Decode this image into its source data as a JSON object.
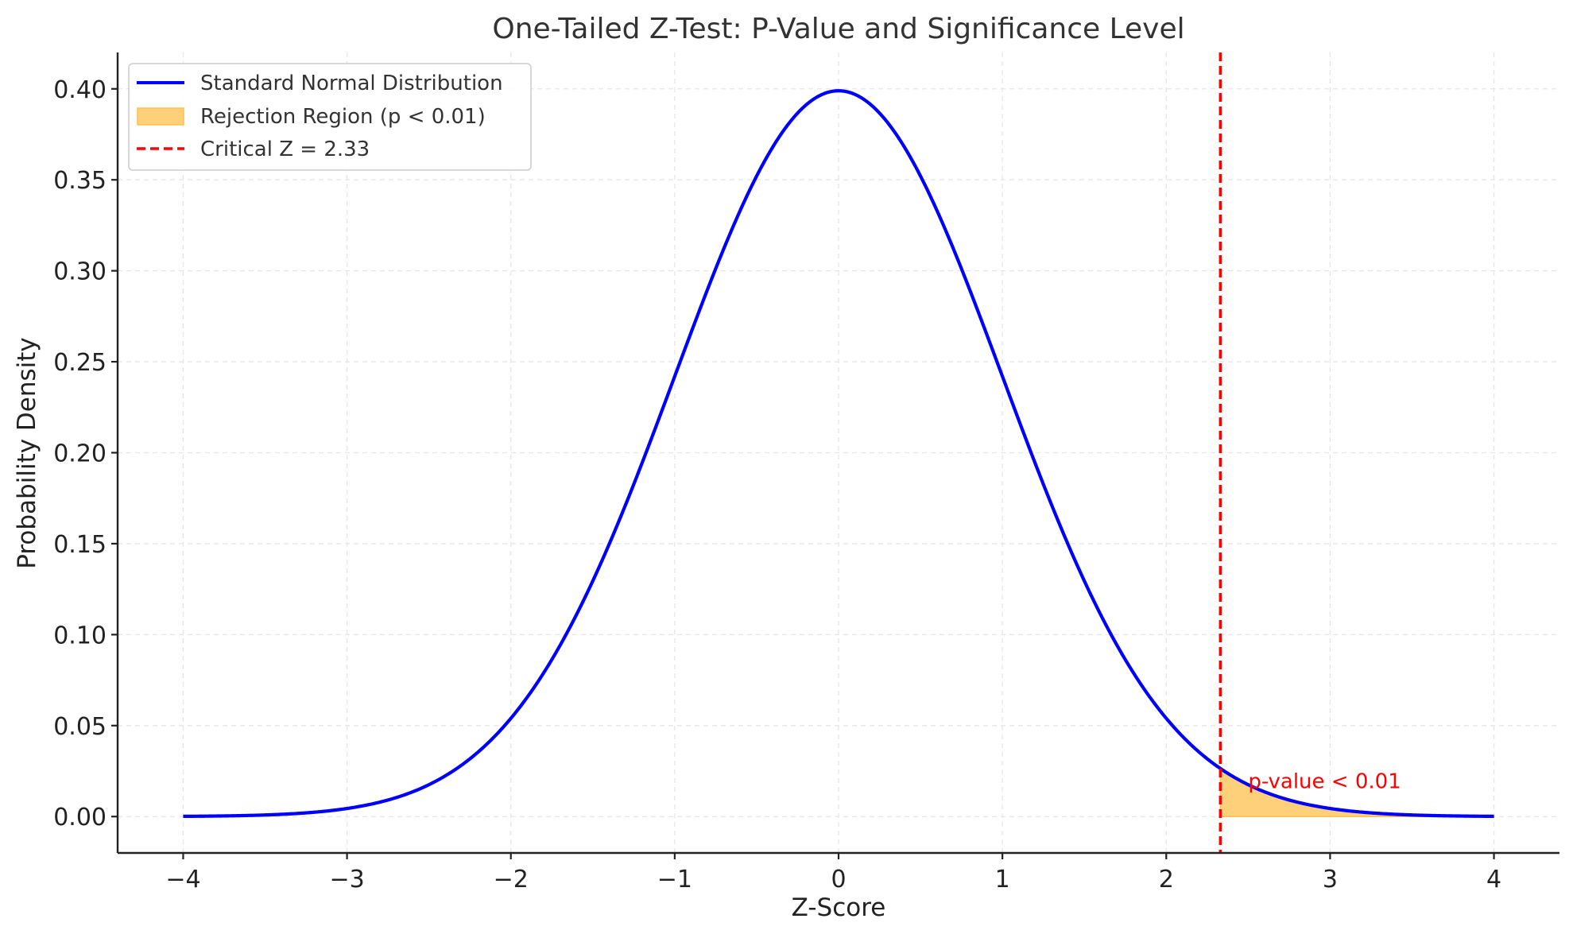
{
  "chart_data": {
    "type": "line",
    "title": "One-Tailed Z-Test: P-Value and Significance Level",
    "xlabel": "Z-Score",
    "ylabel": "Probability Density",
    "xlim": [
      -4.4,
      4.4
    ],
    "ylim": [
      -0.02,
      0.42
    ],
    "x_ticks": [
      -4,
      -3,
      -2,
      -1,
      0,
      1,
      2,
      3,
      4
    ],
    "x_tick_labels": [
      "−4",
      "−3",
      "−2",
      "−1",
      "0",
      "1",
      "2",
      "3",
      "4"
    ],
    "y_ticks": [
      0.0,
      0.05,
      0.1,
      0.15,
      0.2,
      0.25,
      0.3,
      0.35,
      0.4
    ],
    "y_tick_labels": [
      "0.00",
      "0.05",
      "0.10",
      "0.15",
      "0.20",
      "0.25",
      "0.30",
      "0.35",
      "0.40"
    ],
    "grid": true,
    "legend_position": "top-left",
    "series": [
      {
        "name": "Standard Normal Distribution",
        "color": "#0000ff",
        "x": [
          -4.0,
          -3.5,
          -3.0,
          -2.5,
          -2.0,
          -1.5,
          -1.0,
          -0.5,
          0.0,
          0.5,
          1.0,
          1.5,
          2.0,
          2.5,
          3.0,
          3.5,
          4.0
        ],
        "y": [
          0.0001,
          0.0009,
          0.0044,
          0.0175,
          0.054,
          0.1295,
          0.242,
          0.3521,
          0.3989,
          0.3521,
          0.242,
          0.1295,
          0.054,
          0.0175,
          0.0044,
          0.0009,
          0.0001
        ]
      }
    ],
    "shaded_region": {
      "name": "Rejection Region (p < 0.01)",
      "color": "#ffc04d",
      "x_from": 2.33,
      "x_to": 4.0
    },
    "critical_line": {
      "name": "Critical Z = 2.33",
      "color": "#ff0000",
      "x": 2.33
    },
    "annotation": {
      "text": "p-value < 0.01",
      "color": "#ff0000",
      "x": 2.5,
      "y": 0.02
    }
  }
}
